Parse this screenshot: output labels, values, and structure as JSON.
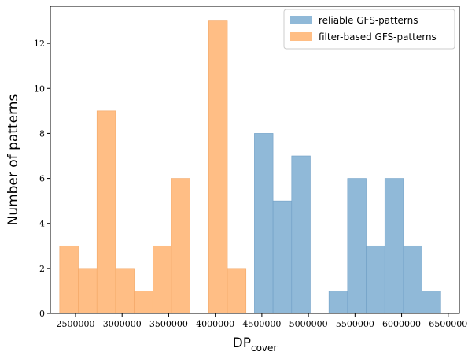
{
  "chart_data": {
    "type": "bar",
    "title": "",
    "xlabel": "DP",
    "xlabel_subscript": "cover",
    "ylabel": "Number of patterns",
    "xlim": [
      2230000,
      6620000
    ],
    "ylim": [
      0,
      13.65
    ],
    "x_ticks": [
      2500000,
      3000000,
      3500000,
      4000000,
      4500000,
      5000000,
      5500000,
      6000000,
      6500000
    ],
    "x_tick_labels": [
      "2500000",
      "3000000",
      "3500000",
      "4000000",
      "4500000",
      "5000000",
      "5500000",
      "6000000",
      "6500000"
    ],
    "y_ticks": [
      0,
      2,
      4,
      6,
      8,
      10,
      12
    ],
    "y_tick_labels": [
      "0",
      "2",
      "4",
      "6",
      "8",
      "10",
      "12"
    ],
    "grid": false,
    "legend_position": "top-right",
    "series": [
      {
        "name": "reliable GFS-patterns",
        "color": "#90b9d8",
        "edge_color": "#6f9fc6",
        "bins": [
          {
            "start": 4420000,
            "end": 4620000,
            "count": 8
          },
          {
            "start": 4620000,
            "end": 4820000,
            "count": 5
          },
          {
            "start": 4820000,
            "end": 5020000,
            "count": 7
          },
          {
            "start": 5220000,
            "end": 5420000,
            "count": 1
          },
          {
            "start": 5420000,
            "end": 5620000,
            "count": 6
          },
          {
            "start": 5620000,
            "end": 5820000,
            "count": 3
          },
          {
            "start": 5820000,
            "end": 6020000,
            "count": 6
          },
          {
            "start": 6020000,
            "end": 6220000,
            "count": 3
          },
          {
            "start": 6220000,
            "end": 6420000,
            "count": 1
          }
        ]
      },
      {
        "name": "filter-based GFS-patterns",
        "color": "#ffbe85",
        "edge_color": "#f2a766",
        "bins": [
          {
            "start": 2330000,
            "end": 2530000,
            "count": 3
          },
          {
            "start": 2530000,
            "end": 2730000,
            "count": 2
          },
          {
            "start": 2730000,
            "end": 2930000,
            "count": 9
          },
          {
            "start": 2930000,
            "end": 3130000,
            "count": 2
          },
          {
            "start": 3130000,
            "end": 3330000,
            "count": 1
          },
          {
            "start": 3330000,
            "end": 3530000,
            "count": 3
          },
          {
            "start": 3530000,
            "end": 3730000,
            "count": 6
          },
          {
            "start": 3930000,
            "end": 4130000,
            "count": 13
          },
          {
            "start": 4130000,
            "end": 4330000,
            "count": 2
          }
        ]
      }
    ]
  }
}
